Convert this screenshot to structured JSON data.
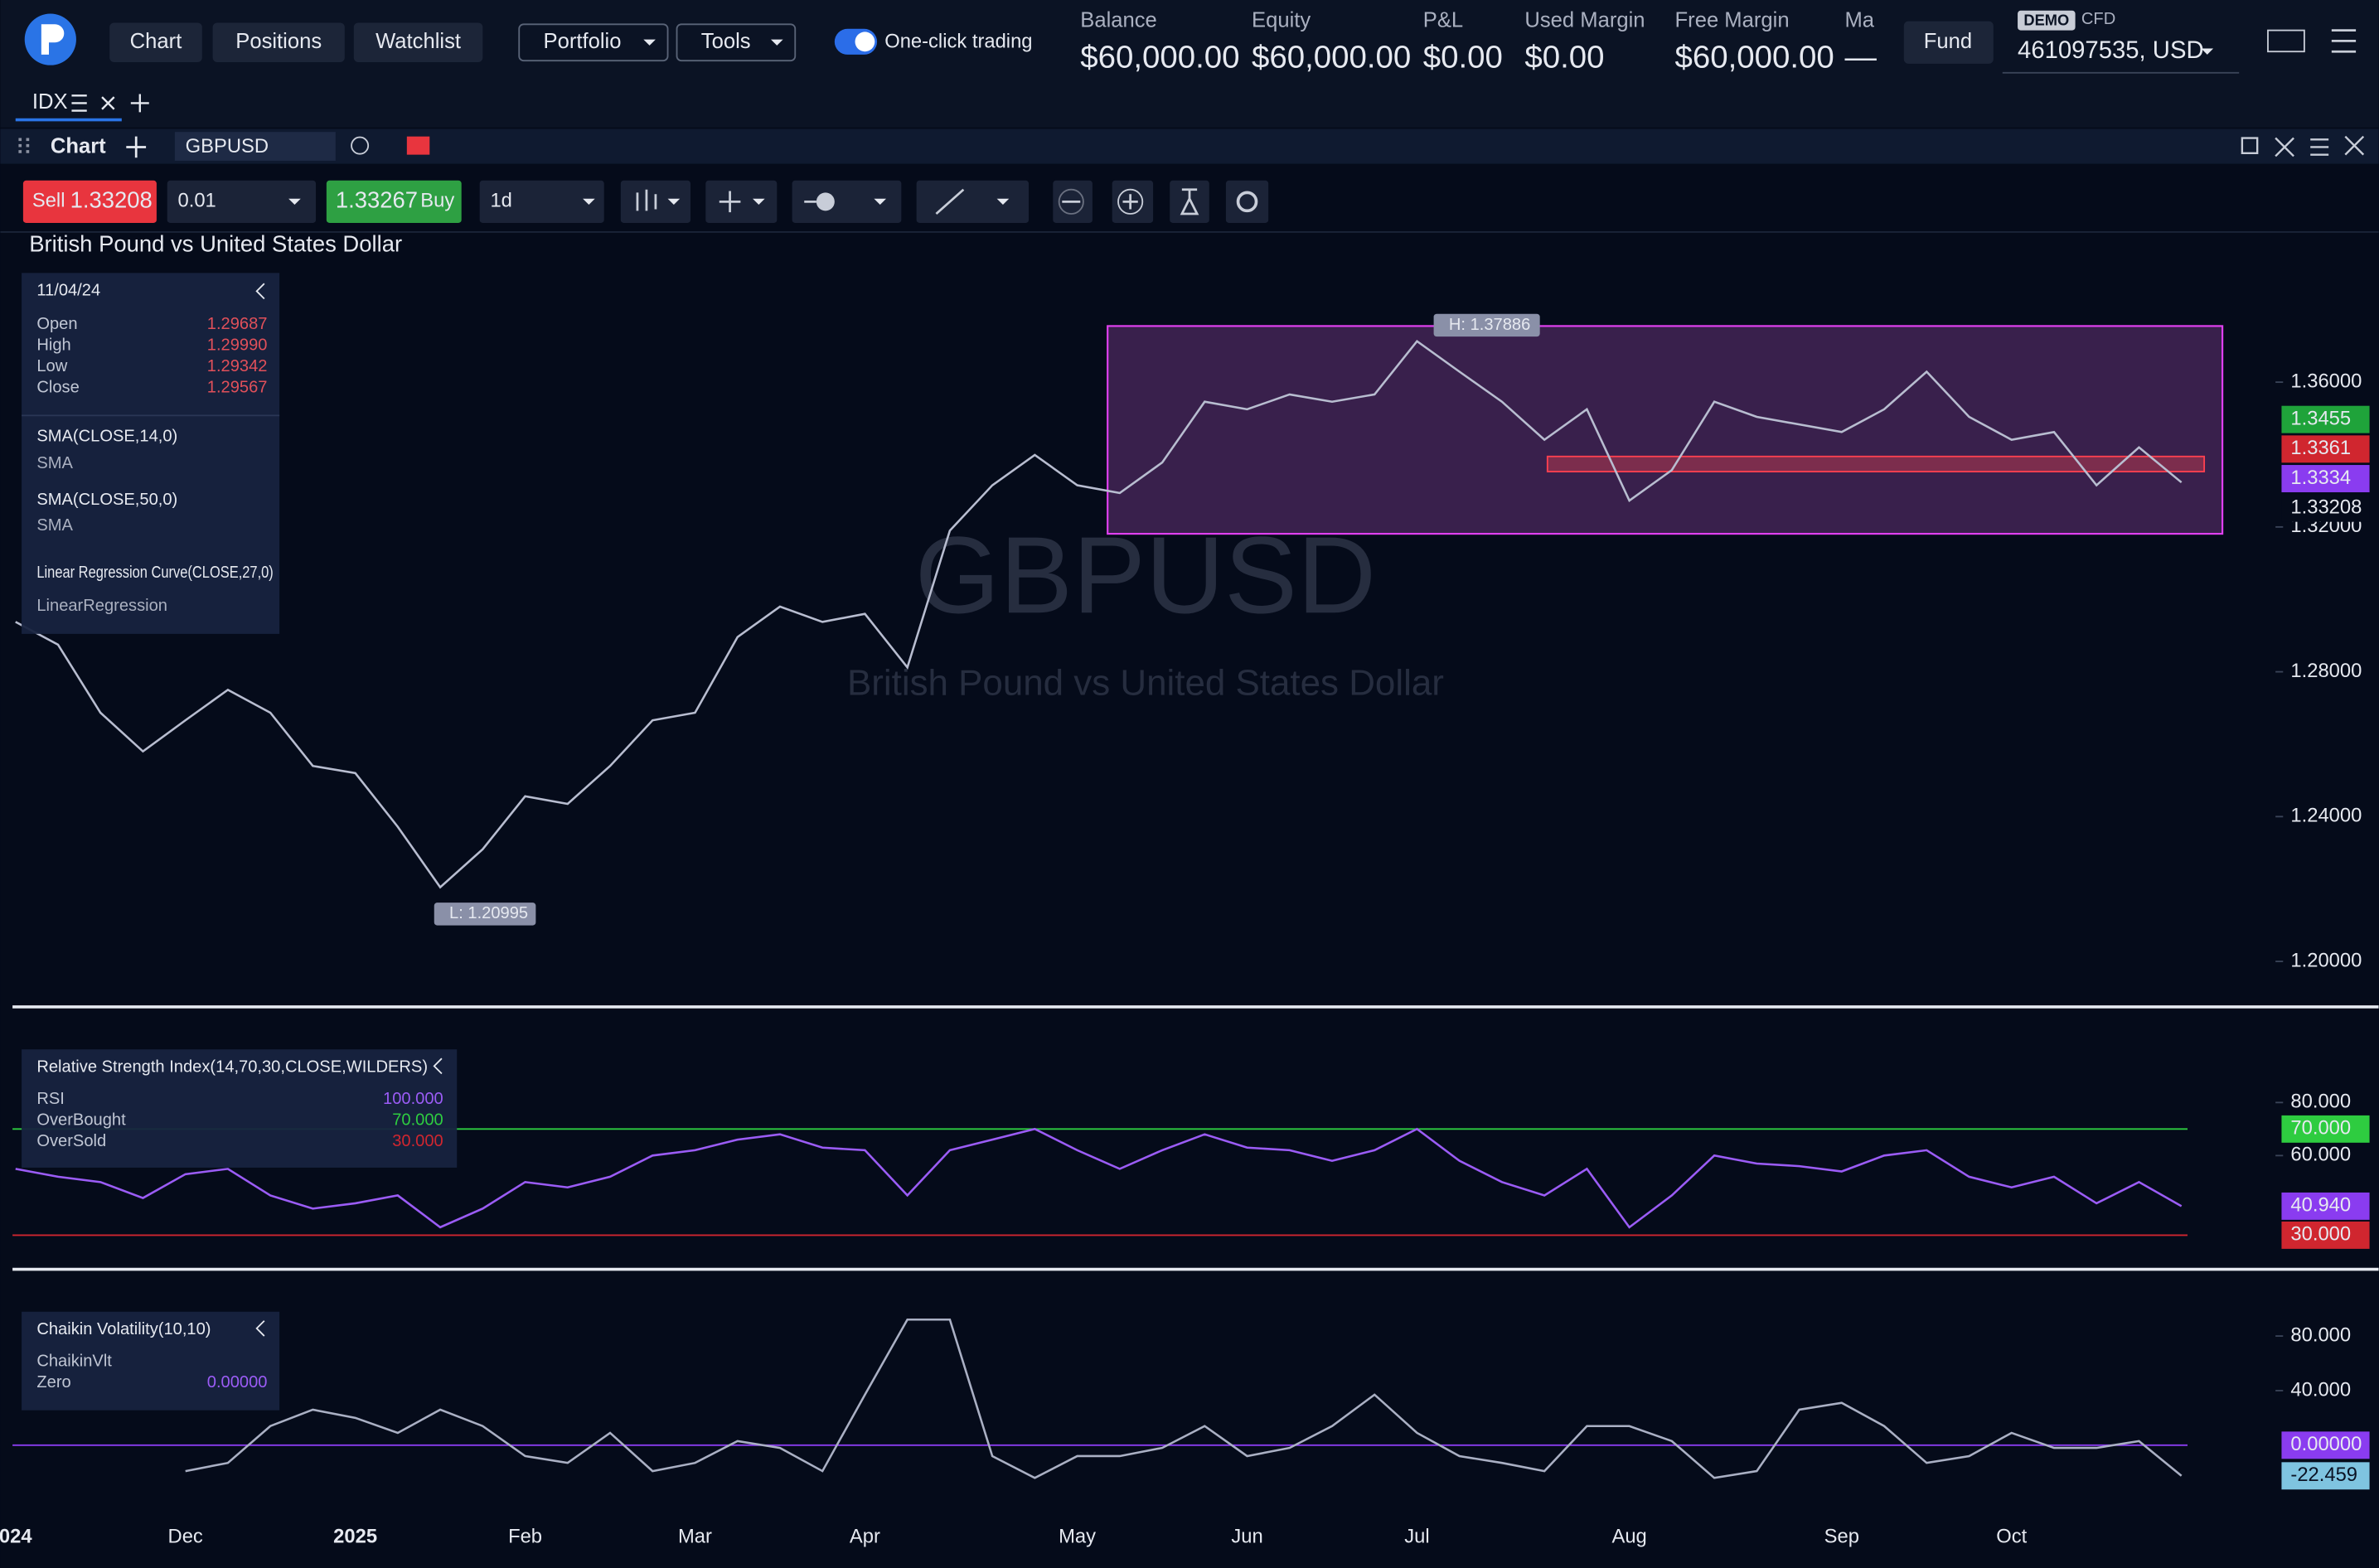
{
  "header": {
    "nav": [
      "Chart",
      "Positions",
      "Watchlist"
    ],
    "menus": [
      "Portfolio",
      "Tools"
    ],
    "one_click": "One-click trading",
    "stats": [
      {
        "label": "Balance",
        "value": "$60,000.00"
      },
      {
        "label": "Equity",
        "value": "$60,000.00"
      },
      {
        "label": "P&L",
        "value": "$0.00"
      },
      {
        "label": "Used Margin",
        "value": "$0.00"
      },
      {
        "label": "Free Margin",
        "value": "$60,000.00"
      },
      {
        "label": "Ma",
        "value": "—"
      }
    ],
    "fund": "Fund",
    "account_type": "DEMO",
    "product": "CFD",
    "account": "461097535, USD"
  },
  "tab": "IDX",
  "panel": {
    "title": "Chart",
    "symbol": "GBPUSD"
  },
  "toolbar": {
    "sell_label": "Sell",
    "sell_price": "1.33208",
    "quantity": "0.01",
    "buy_price": "1.33267",
    "buy_label": "Buy",
    "interval": "1d"
  },
  "instrument": "British Pound vs United States Dollar",
  "watermark": {
    "symbol": "GBPUSD",
    "name": "British Pound vs United States Dollar"
  },
  "info": {
    "date": "11/04/24",
    "ohlc": [
      [
        "Open",
        "1.29687"
      ],
      [
        "High",
        "1.29990"
      ],
      [
        "Low",
        "1.29342"
      ],
      [
        "Close",
        "1.29567"
      ]
    ],
    "indicators": [
      {
        "name": "SMA(CLOSE,14,0)",
        "type": "SMA"
      },
      {
        "name": "SMA(CLOSE,50,0)",
        "type": "SMA"
      },
      {
        "name": "Linear Regression Curve(CLOSE,27,0)",
        "type": "LinearRegression"
      }
    ]
  },
  "chart_data": [
    {
      "type": "line",
      "color": "#b8bdd0",
      "values": [
        1.2938,
        1.2875,
        1.2687,
        1.258,
        1.2666,
        1.275,
        1.2687,
        1.254,
        1.252,
        1.2372,
        1.2205,
        1.231,
        1.2456,
        1.2435,
        1.254,
        1.2666,
        1.2687,
        1.2896,
        1.298,
        1.2938,
        1.296,
        1.2812,
        1.319,
        1.3315,
        1.3399,
        1.3315,
        1.3294,
        1.3378,
        1.3546,
        1.3525,
        1.3566,
        1.3546,
        1.3566,
        1.3713,
        1.3629,
        1.3546,
        1.3441,
        1.3525,
        1.3273,
        1.3357,
        1.3546,
        1.3504,
        1.3483,
        1.3462,
        1.3525,
        1.3629,
        1.3504,
        1.3441,
        1.3462,
        1.3315,
        1.342,
        1.3323
      ],
      "ylim": [
        1.18827,
        1.40063
      ],
      "yticks": [
        {
          "value": 1.36,
          "label": "1.36000"
        },
        {
          "value": 1.32,
          "label": "1.32000"
        },
        {
          "value": 1.28,
          "label": "1.28000"
        },
        {
          "value": 1.24,
          "label": "1.24000"
        },
        {
          "value": 1.2,
          "label": "1.20000"
        }
      ],
      "grid": false,
      "high": {
        "value": 1.37886,
        "label": "H: 1.37886"
      },
      "low": {
        "value": 1.20995,
        "label": "L: 1.20995"
      },
      "tags": [
        {
          "value": 1.3455,
          "color": "#1fa33a"
        },
        {
          "value": 1.3361,
          "color": "#d0262f"
        },
        {
          "value": 1.3334,
          "color": "#8a3cf0"
        },
        {
          "value": 1.33208,
          "color": "#050b1a"
        }
      ]
    },
    {
      "type": "line",
      "color": "#9b5cf6",
      "title": "Relative Strength Index(14,70,30,CLOSE,WILDERS)",
      "legend_rows": [
        [
          "RSI",
          "100.000"
        ],
        [
          "OverBought",
          "70.000"
        ],
        [
          "OverSold",
          "30.000"
        ]
      ],
      "values": [
        55,
        52,
        50,
        44,
        53,
        55,
        45,
        40,
        42,
        45,
        33,
        40,
        50,
        48,
        52,
        60,
        62,
        66,
        68,
        63,
        62,
        45,
        62,
        66,
        70,
        62,
        55,
        62,
        68,
        63,
        62,
        58,
        62,
        70,
        58,
        50,
        45,
        55,
        33,
        45,
        60,
        57,
        56,
        54,
        60,
        62,
        52,
        48,
        52,
        42,
        50,
        40.94
      ],
      "ylim": [
        18.3,
        112.6
      ],
      "yticks": [
        {
          "value": 80,
          "label": "80.000"
        },
        {
          "value": 60,
          "label": "60.000"
        }
      ],
      "grid": false,
      "levels": [
        {
          "value": 70,
          "label": "70.000",
          "color": "#2ecc40"
        },
        {
          "value": 30,
          "label": "30.000",
          "color": "#d0262f"
        }
      ],
      "current": {
        "value": 40.94,
        "label": "40.940",
        "color": "#8a3cf0"
      }
    },
    {
      "type": "line",
      "color": "#aab0c4",
      "title": "Chaikin Volatility(10,10)",
      "legend_rows": [
        [
          "ChaikinVlt",
          null
        ],
        [
          "Zero",
          "0.00000"
        ]
      ],
      "categories": [
        "024",
        null,
        null,
        null,
        "Dec",
        null,
        null,
        null,
        "2025",
        null,
        null,
        null,
        "Feb",
        null,
        null,
        null,
        "Mar",
        null,
        null,
        null,
        "Apr",
        null,
        null,
        null,
        null,
        "May",
        null,
        null,
        null,
        "Jun",
        null,
        null,
        null,
        "Jul",
        null,
        null,
        null,
        null,
        "Aug",
        null,
        null,
        null,
        null,
        "Sep",
        null,
        null,
        null,
        "Oct",
        null,
        null,
        null,
        null
      ],
      "values": [
        null,
        null,
        null,
        null,
        -19,
        -13,
        14,
        26,
        20,
        9,
        26,
        14,
        -8,
        -13,
        9,
        -19,
        -13,
        3,
        -2,
        -19,
        37,
        92,
        92,
        -8,
        -24,
        -8,
        -8,
        -2,
        14,
        -8,
        -2,
        14,
        37,
        9,
        -8,
        -13,
        -19,
        14,
        14,
        3,
        -24,
        -19,
        26,
        31,
        14,
        -13,
        -8,
        9,
        -2,
        -2,
        3,
        -22.459
      ],
      "ylim": [
        -52.2,
        125.6
      ],
      "yticks": [
        {
          "value": 80,
          "label": "80.000"
        },
        {
          "value": 40,
          "label": "40.000"
        }
      ],
      "grid": false,
      "zero": {
        "value": 0,
        "label": "0.00000",
        "color": "#8a3cf0"
      },
      "current": {
        "value": -22.459,
        "color": "#7fc4e0"
      }
    }
  ]
}
